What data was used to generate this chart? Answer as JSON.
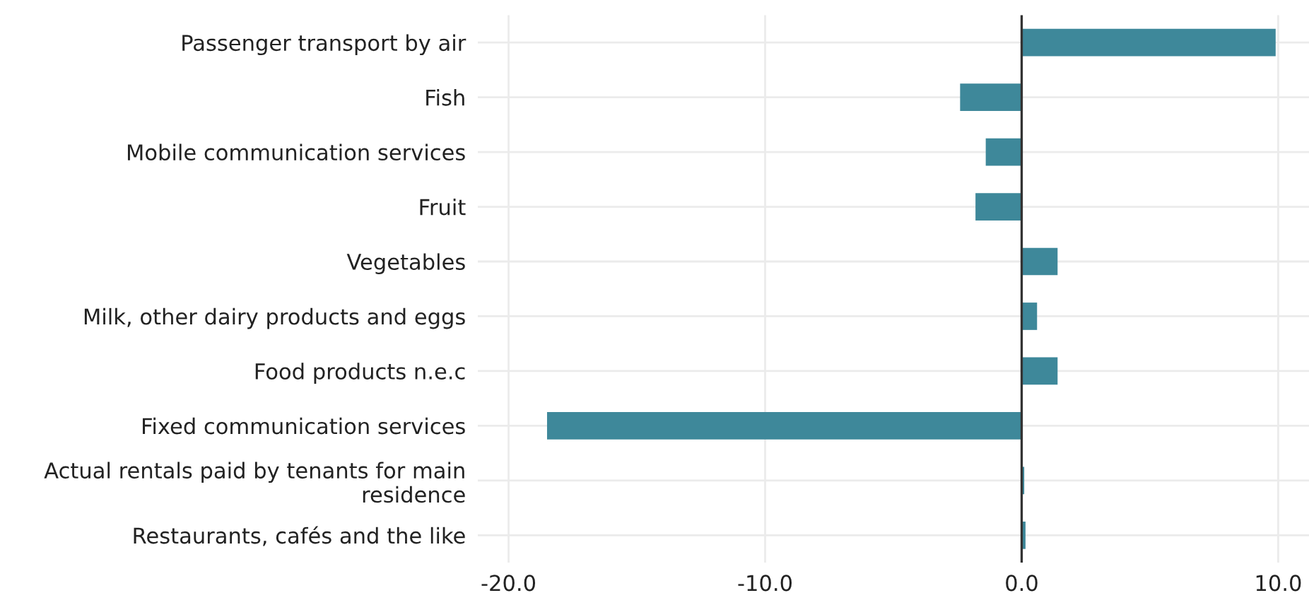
{
  "chart_data": {
    "type": "bar",
    "orientation": "horizontal",
    "categories": [
      "Passenger transport by air",
      "Fish",
      "Mobile communication services",
      "Fruit",
      "Vegetables",
      "Milk, other dairy products and eggs",
      "Food products n.e.c",
      "Fixed communication services",
      "Actual rentals paid by tenants for main residence",
      "Restaurants, cafés and the like"
    ],
    "values": [
      9.9,
      -2.4,
      -1.4,
      -1.8,
      1.4,
      0.6,
      1.4,
      -18.5,
      0.1,
      0.15
    ],
    "color": "#3e889a",
    "xlim": [
      -21.2,
      11.2
    ],
    "xticks": [
      {
        "value": -20,
        "label": "-20.0"
      },
      {
        "value": -10,
        "label": "-10.0"
      },
      {
        "value": 0,
        "label": "0.0"
      },
      {
        "value": 10,
        "label": "10.0"
      }
    ],
    "ref_lines": [
      {
        "axis": "x",
        "value": 0,
        "color": "#333333"
      }
    ],
    "grid": true
  }
}
